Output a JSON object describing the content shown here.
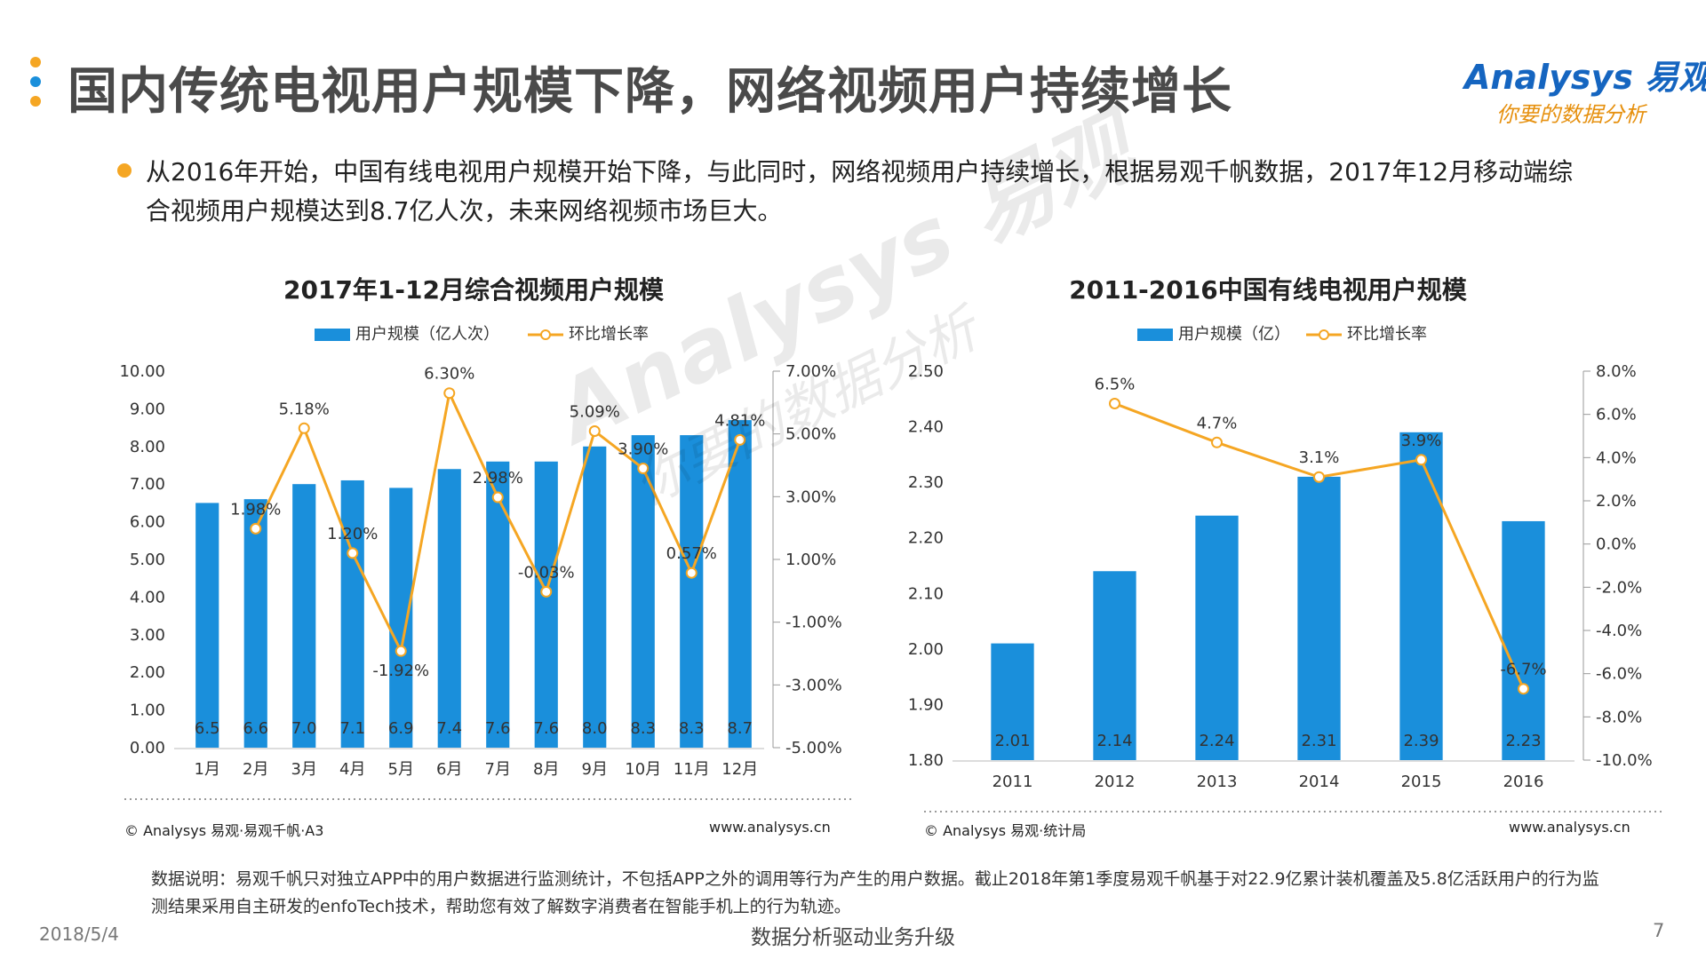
{
  "page": {
    "title": "国内传统电视用户规模下降，网络视频用户持续增长",
    "bullet": "从2016年开始，中国有线电视用户规模开始下降，与此同时，网络视频用户持续增长，根据易观千帆数据，2017年12月移动端综合视频用户规模达到8.7亿人次，未来网络视频市场巨大。",
    "footnote": "数据说明：易观千帆只对独立APP中的用户数据进行监测统计，不包括APP之外的调用等行为产生的用户数据。截止2018年第1季度易观千帆基于对22.9亿累计装机覆盖及5.8亿活跃用户的行为监测结果采用自主研发的enfoTech技术，帮助您有效了解数字消费者在智能手机上的行为轨迹。",
    "date": "2018/5/4",
    "slogan": "数据分析驱动业务升级",
    "page_number": "7"
  },
  "logo": {
    "brand": "Analysys 易观",
    "tagline": "你要的数据分析"
  },
  "watermark": {
    "main": "Analysys 易观",
    "sub": "你要的数据分析"
  },
  "colors": {
    "bar": "#1a8fdb",
    "line": "#f5a623",
    "dot_orange": "#f5a623",
    "dot_blue": "#1a8fdb",
    "title_text": "#4a4a4a"
  },
  "chart_data": [
    {
      "type": "bar",
      "title": "2017年1-12月综合视频用户规模",
      "categories": [
        "1月",
        "2月",
        "3月",
        "4月",
        "5月",
        "6月",
        "7月",
        "8月",
        "9月",
        "10月",
        "11月",
        "12月"
      ],
      "series": [
        {
          "name": "用户规模（亿人次）",
          "type": "bar",
          "axis": "left",
          "values": [
            6.5,
            6.6,
            7.0,
            7.1,
            6.9,
            7.4,
            7.6,
            7.6,
            8.0,
            8.3,
            8.3,
            8.7
          ]
        },
        {
          "name": "环比增长率",
          "type": "line",
          "axis": "right",
          "values": [
            null,
            1.98,
            5.18,
            1.2,
            -1.92,
            6.3,
            2.98,
            -0.03,
            5.09,
            3.9,
            0.57,
            4.81
          ],
          "labels": [
            "",
            "1.98%",
            "5.18%",
            "1.20%",
            "-1.92%",
            "6.30%",
            "2.98%",
            "-0.03%",
            "5.09%",
            "3.90%",
            "0.57%",
            "4.81%"
          ]
        }
      ],
      "ylim_left": [
        0,
        10
      ],
      "yticks_left": [
        "0.00",
        "1.00",
        "2.00",
        "3.00",
        "4.00",
        "5.00",
        "6.00",
        "7.00",
        "8.00",
        "9.00",
        "10.00"
      ],
      "ylim_right": [
        -5,
        7
      ],
      "yticks_right": [
        "-5.00%",
        "-3.00%",
        "-1.00%",
        "1.00%",
        "3.00%",
        "5.00%",
        "7.00%"
      ],
      "legend_position": "top",
      "grid": false,
      "source": "© Analysys 易观·易观千帆·A3",
      "website": "www.analysys.cn"
    },
    {
      "type": "bar",
      "title": "2011-2016中国有线电视用户规模",
      "categories": [
        "2011",
        "2012",
        "2013",
        "2014",
        "2015",
        "2016"
      ],
      "series": [
        {
          "name": "用户规模（亿）",
          "type": "bar",
          "axis": "left",
          "values": [
            2.01,
            2.14,
            2.24,
            2.31,
            2.39,
            2.23
          ]
        },
        {
          "name": "环比增长率",
          "type": "line",
          "axis": "right",
          "values": [
            null,
            6.5,
            4.7,
            3.1,
            3.9,
            -6.7
          ],
          "labels": [
            "",
            "6.5%",
            "4.7%",
            "3.1%",
            "3.9%",
            "-6.7%"
          ]
        }
      ],
      "ylim_left": [
        1.8,
        2.5
      ],
      "yticks_left": [
        "1.80",
        "1.90",
        "2.00",
        "2.10",
        "2.20",
        "2.30",
        "2.40",
        "2.50"
      ],
      "ylim_right": [
        -10,
        8
      ],
      "yticks_right": [
        "-10.0%",
        "-8.0%",
        "-6.0%",
        "-4.0%",
        "-2.0%",
        "0.0%",
        "2.0%",
        "4.0%",
        "6.0%",
        "8.0%"
      ],
      "legend_position": "top",
      "grid": false,
      "source": "© Analysys 易观·统计局",
      "website": "www.analysys.cn"
    }
  ]
}
